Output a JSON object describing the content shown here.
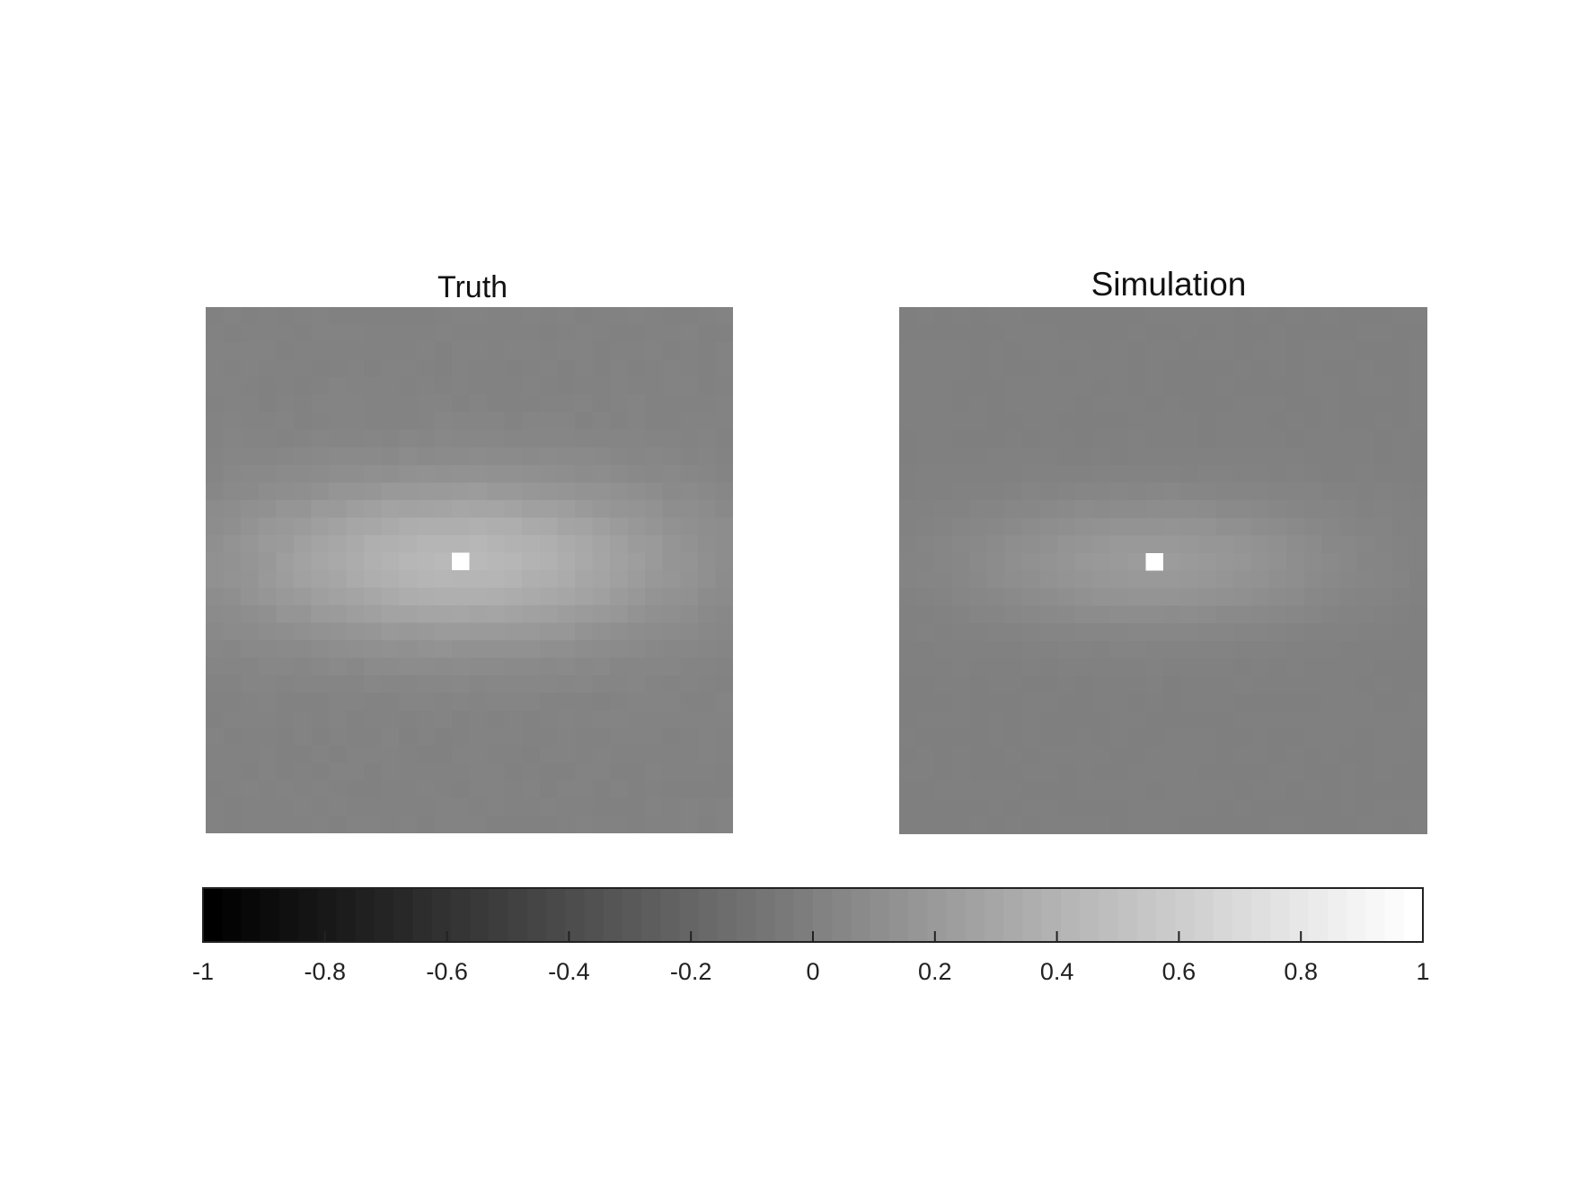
{
  "chart_data": [
    {
      "type": "heatmap",
      "title": "Truth",
      "grid_size": [
        30,
        30
      ],
      "colormap": "gray",
      "clim": [
        -1,
        1
      ],
      "peak_cell": {
        "row": 14,
        "col": 14,
        "value": 1.0
      },
      "center_plateau": 0.45,
      "edge_value": 0.02,
      "decay_x": 12,
      "decay_y": 4.5,
      "noise": 0.02
    },
    {
      "type": "heatmap",
      "title": "Simulation",
      "grid_size": [
        30,
        30
      ],
      "colormap": "gray",
      "clim": [
        -1,
        1
      ],
      "peak_cell": {
        "row": 14,
        "col": 14,
        "value": 1.0
      },
      "center_plateau": 0.22,
      "edge_value": 0.0,
      "decay_x": 10,
      "decay_y": 3.5,
      "noise": 0.012
    }
  ],
  "colorbar": {
    "orientation": "horizontal",
    "range": [
      -1,
      1
    ],
    "ticks": [
      -1,
      -0.8,
      -0.6,
      -0.4,
      -0.2,
      0,
      0.2,
      0.4,
      0.6,
      0.8,
      1
    ],
    "tick_labels": [
      "-1",
      "-0.8",
      "-0.6",
      "-0.4",
      "-0.2",
      "0",
      "0.2",
      "0.4",
      "0.6",
      "0.8",
      "1"
    ],
    "levels": 64
  }
}
